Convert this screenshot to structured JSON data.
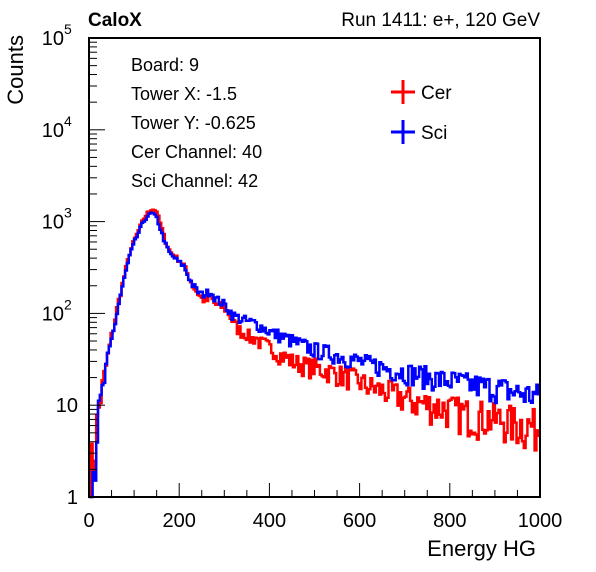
{
  "chart_data": {
    "type": "line",
    "title_left": "CaloX",
    "title_right": "Run 1411: e+, 120 GeV",
    "xlabel": "Energy HG",
    "ylabel": "Counts",
    "xlim": [
      0,
      1000
    ],
    "ylim": [
      1,
      100000
    ],
    "y_scale": "log",
    "grid": false,
    "legend_position": "top-right",
    "x_ticks": [
      {
        "value": 0,
        "label": "0"
      },
      {
        "value": 200,
        "label": "200"
      },
      {
        "value": 400,
        "label": "400"
      },
      {
        "value": 600,
        "label": "600"
      },
      {
        "value": 800,
        "label": "800"
      },
      {
        "value": 1000,
        "label": "1000"
      }
    ],
    "y_ticks": [
      {
        "value": 1,
        "label": "1"
      },
      {
        "value": 10,
        "label": "10"
      },
      {
        "value": 100,
        "label": "10",
        "exp": "2"
      },
      {
        "value": 1000,
        "label": "10",
        "exp": "3"
      },
      {
        "value": 10000,
        "label": "10",
        "exp": "4"
      },
      {
        "value": 100000,
        "label": "10",
        "exp": "5"
      }
    ],
    "info_box": [
      "Board: 9",
      "Tower X: -1.5",
      "Tower Y: -0.625",
      "Cer Channel: 40",
      "Sci Channel: 42"
    ],
    "series": [
      {
        "name": "Cer",
        "color": "#ff0000",
        "points": [
          [
            0,
            1.8
          ],
          [
            10,
            2.5
          ],
          [
            20,
            8
          ],
          [
            30,
            16
          ],
          [
            40,
            30
          ],
          [
            50,
            55
          ],
          [
            60,
            100
          ],
          [
            70,
            170
          ],
          [
            80,
            280
          ],
          [
            90,
            450
          ],
          [
            100,
            620
          ],
          [
            110,
            800
          ],
          [
            120,
            1050
          ],
          [
            130,
            1250
          ],
          [
            140,
            1380
          ],
          [
            150,
            1300
          ],
          [
            160,
            900
          ],
          [
            170,
            600
          ],
          [
            180,
            470
          ],
          [
            190,
            420
          ],
          [
            200,
            380
          ],
          [
            210,
            340
          ],
          [
            220,
            260
          ],
          [
            230,
            200
          ],
          [
            240,
            170
          ],
          [
            250,
            145
          ],
          [
            260,
            135
          ],
          [
            270,
            150
          ],
          [
            280,
            125
          ],
          [
            290,
            120
          ],
          [
            300,
            115
          ],
          [
            310,
            100
          ],
          [
            320,
            80
          ],
          [
            330,
            68
          ],
          [
            340,
            62
          ],
          [
            350,
            60
          ],
          [
            360,
            52
          ],
          [
            370,
            55
          ],
          [
            380,
            47
          ],
          [
            390,
            46
          ],
          [
            400,
            42
          ],
          [
            410,
            40
          ],
          [
            420,
            36
          ],
          [
            430,
            34
          ],
          [
            440,
            33
          ],
          [
            450,
            30
          ],
          [
            460,
            29
          ],
          [
            470,
            28
          ],
          [
            480,
            27
          ],
          [
            490,
            26
          ],
          [
            500,
            26
          ],
          [
            520,
            24
          ],
          [
            540,
            23
          ],
          [
            560,
            21
          ],
          [
            580,
            20
          ],
          [
            600,
            18
          ],
          [
            620,
            16
          ],
          [
            640,
            15
          ],
          [
            660,
            14
          ],
          [
            680,
            13
          ],
          [
            700,
            12
          ],
          [
            720,
            11
          ],
          [
            740,
            10.5
          ],
          [
            760,
            10
          ],
          [
            780,
            9.5
          ],
          [
            800,
            9
          ],
          [
            820,
            8.5
          ],
          [
            840,
            8
          ],
          [
            860,
            7.8
          ],
          [
            880,
            7.5
          ],
          [
            900,
            7
          ],
          [
            920,
            7
          ],
          [
            940,
            6.5
          ],
          [
            960,
            6.2
          ],
          [
            980,
            6
          ],
          [
            1000,
            5.8
          ]
        ]
      },
      {
        "name": "Sci",
        "color": "#0000ff",
        "points": [
          [
            0,
            1.5
          ],
          [
            10,
            2.2
          ],
          [
            20,
            7
          ],
          [
            30,
            14
          ],
          [
            40,
            27
          ],
          [
            50,
            50
          ],
          [
            60,
            90
          ],
          [
            70,
            160
          ],
          [
            80,
            260
          ],
          [
            90,
            420
          ],
          [
            100,
            580
          ],
          [
            110,
            760
          ],
          [
            120,
            980
          ],
          [
            130,
            1150
          ],
          [
            140,
            1250
          ],
          [
            150,
            1100
          ],
          [
            160,
            780
          ],
          [
            170,
            560
          ],
          [
            180,
            440
          ],
          [
            190,
            400
          ],
          [
            200,
            360
          ],
          [
            210,
            330
          ],
          [
            220,
            255
          ],
          [
            230,
            205
          ],
          [
            240,
            175
          ],
          [
            250,
            160
          ],
          [
            260,
            165
          ],
          [
            270,
            175
          ],
          [
            280,
            145
          ],
          [
            290,
            135
          ],
          [
            300,
            125
          ],
          [
            310,
            110
          ],
          [
            320,
            95
          ],
          [
            330,
            90
          ],
          [
            340,
            85
          ],
          [
            350,
            82
          ],
          [
            360,
            80
          ],
          [
            370,
            78
          ],
          [
            380,
            72
          ],
          [
            390,
            68
          ],
          [
            400,
            64
          ],
          [
            410,
            60
          ],
          [
            420,
            58
          ],
          [
            430,
            55
          ],
          [
            440,
            53
          ],
          [
            450,
            50
          ],
          [
            460,
            48
          ],
          [
            470,
            46
          ],
          [
            480,
            44
          ],
          [
            490,
            42
          ],
          [
            500,
            40
          ],
          [
            520,
            38
          ],
          [
            540,
            36
          ],
          [
            560,
            34
          ],
          [
            580,
            32
          ],
          [
            600,
            30
          ],
          [
            620,
            28
          ],
          [
            640,
            27
          ],
          [
            660,
            25
          ],
          [
            680,
            24
          ],
          [
            700,
            23
          ],
          [
            720,
            22
          ],
          [
            740,
            21
          ],
          [
            760,
            20
          ],
          [
            780,
            19
          ],
          [
            800,
            18.5
          ],
          [
            820,
            18
          ],
          [
            840,
            17
          ],
          [
            860,
            16.5
          ],
          [
            880,
            16
          ],
          [
            900,
            15.5
          ],
          [
            920,
            15
          ],
          [
            940,
            14
          ],
          [
            960,
            13.5
          ],
          [
            980,
            13
          ],
          [
            1000,
            12.5
          ]
        ]
      }
    ]
  }
}
